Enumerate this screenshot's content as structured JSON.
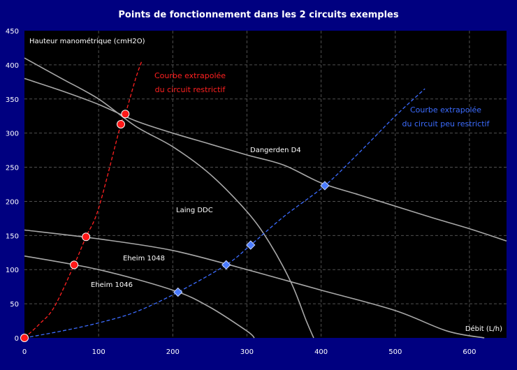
{
  "chart_data": {
    "type": "line",
    "title": "Points de fonctionnement dans les 2 circuits exemples",
    "xlabel": "Débit (L/h)",
    "ylabel": "Hauteur manométrique (cmH2O)",
    "xlim": [
      0,
      650
    ],
    "ylim": [
      0,
      450
    ],
    "x_ticks": [
      0,
      100,
      200,
      300,
      400,
      500,
      600
    ],
    "y_ticks": [
      0,
      50,
      100,
      150,
      200,
      250,
      300,
      350,
      400,
      450
    ],
    "grid": true,
    "colors": {
      "background": "#000080",
      "plot_background": "#000000",
      "grid": "#505050",
      "pump_curve": "#a8a8a8",
      "restrictive_circuit": "#ff2020",
      "low_restriction_circuit": "#3c6cff",
      "text": "#ffffff"
    },
    "pump_curves": [
      {
        "name": "Dangerden D4",
        "points": [
          [
            0,
            380
          ],
          [
            50,
            362
          ],
          [
            100,
            342
          ],
          [
            150,
            318
          ],
          [
            200,
            300
          ],
          [
            250,
            284
          ],
          [
            300,
            268
          ],
          [
            350,
            253
          ],
          [
            400,
            227
          ],
          [
            450,
            210
          ],
          [
            500,
            193
          ],
          [
            550,
            176
          ],
          [
            600,
            160
          ],
          [
            650,
            142
          ]
        ]
      },
      {
        "name": "Laing DDC",
        "points": [
          [
            0,
            410
          ],
          [
            50,
            380
          ],
          [
            100,
            350
          ],
          [
            150,
            310
          ],
          [
            200,
            280
          ],
          [
            250,
            240
          ],
          [
            300,
            185
          ],
          [
            330,
            140
          ],
          [
            360,
            80
          ],
          [
            380,
            25
          ],
          [
            390,
            0
          ]
        ]
      },
      {
        "name": "Eheim 1048",
        "points": [
          [
            0,
            158
          ],
          [
            100,
            145
          ],
          [
            200,
            128
          ],
          [
            300,
            100
          ],
          [
            400,
            70
          ],
          [
            500,
            40
          ],
          [
            570,
            10
          ],
          [
            620,
            0
          ]
        ]
      },
      {
        "name": "Eheim 1046",
        "points": [
          [
            0,
            120
          ],
          [
            100,
            100
          ],
          [
            200,
            70
          ],
          [
            250,
            45
          ],
          [
            300,
            10
          ],
          [
            310,
            0
          ]
        ]
      }
    ],
    "system_curves": [
      {
        "name": "Courbe extrapolée du circuit restrictif",
        "label_lines": [
          "Courbe extrapolée",
          "du circuit restrictif"
        ],
        "points": [
          [
            0,
            0
          ],
          [
            20,
            20
          ],
          [
            40,
            45
          ],
          [
            67,
            107
          ],
          [
            83,
            148
          ],
          [
            100,
            190
          ],
          [
            130,
            313
          ],
          [
            136,
            328
          ],
          [
            150,
            380
          ],
          [
            158,
            405
          ]
        ],
        "operating_points": [
          [
            0,
            0
          ],
          [
            67,
            107
          ],
          [
            83,
            148
          ],
          [
            130,
            313
          ],
          [
            136,
            328
          ]
        ]
      },
      {
        "name": "Courbe extrapolée du circuit peu restrictif",
        "label_lines": [
          "Courbe extrapolée",
          "du circuit peu restrictif"
        ],
        "points": [
          [
            0,
            0
          ],
          [
            50,
            10
          ],
          [
            100,
            22
          ],
          [
            150,
            38
          ],
          [
            207,
            67
          ],
          [
            272,
            107
          ],
          [
            305,
            136
          ],
          [
            350,
            178
          ],
          [
            405,
            223
          ],
          [
            450,
            270
          ],
          [
            500,
            325
          ],
          [
            540,
            365
          ]
        ],
        "operating_points": [
          [
            207,
            67
          ],
          [
            272,
            107
          ],
          [
            305,
            136
          ],
          [
            405,
            223
          ]
        ]
      }
    ]
  }
}
